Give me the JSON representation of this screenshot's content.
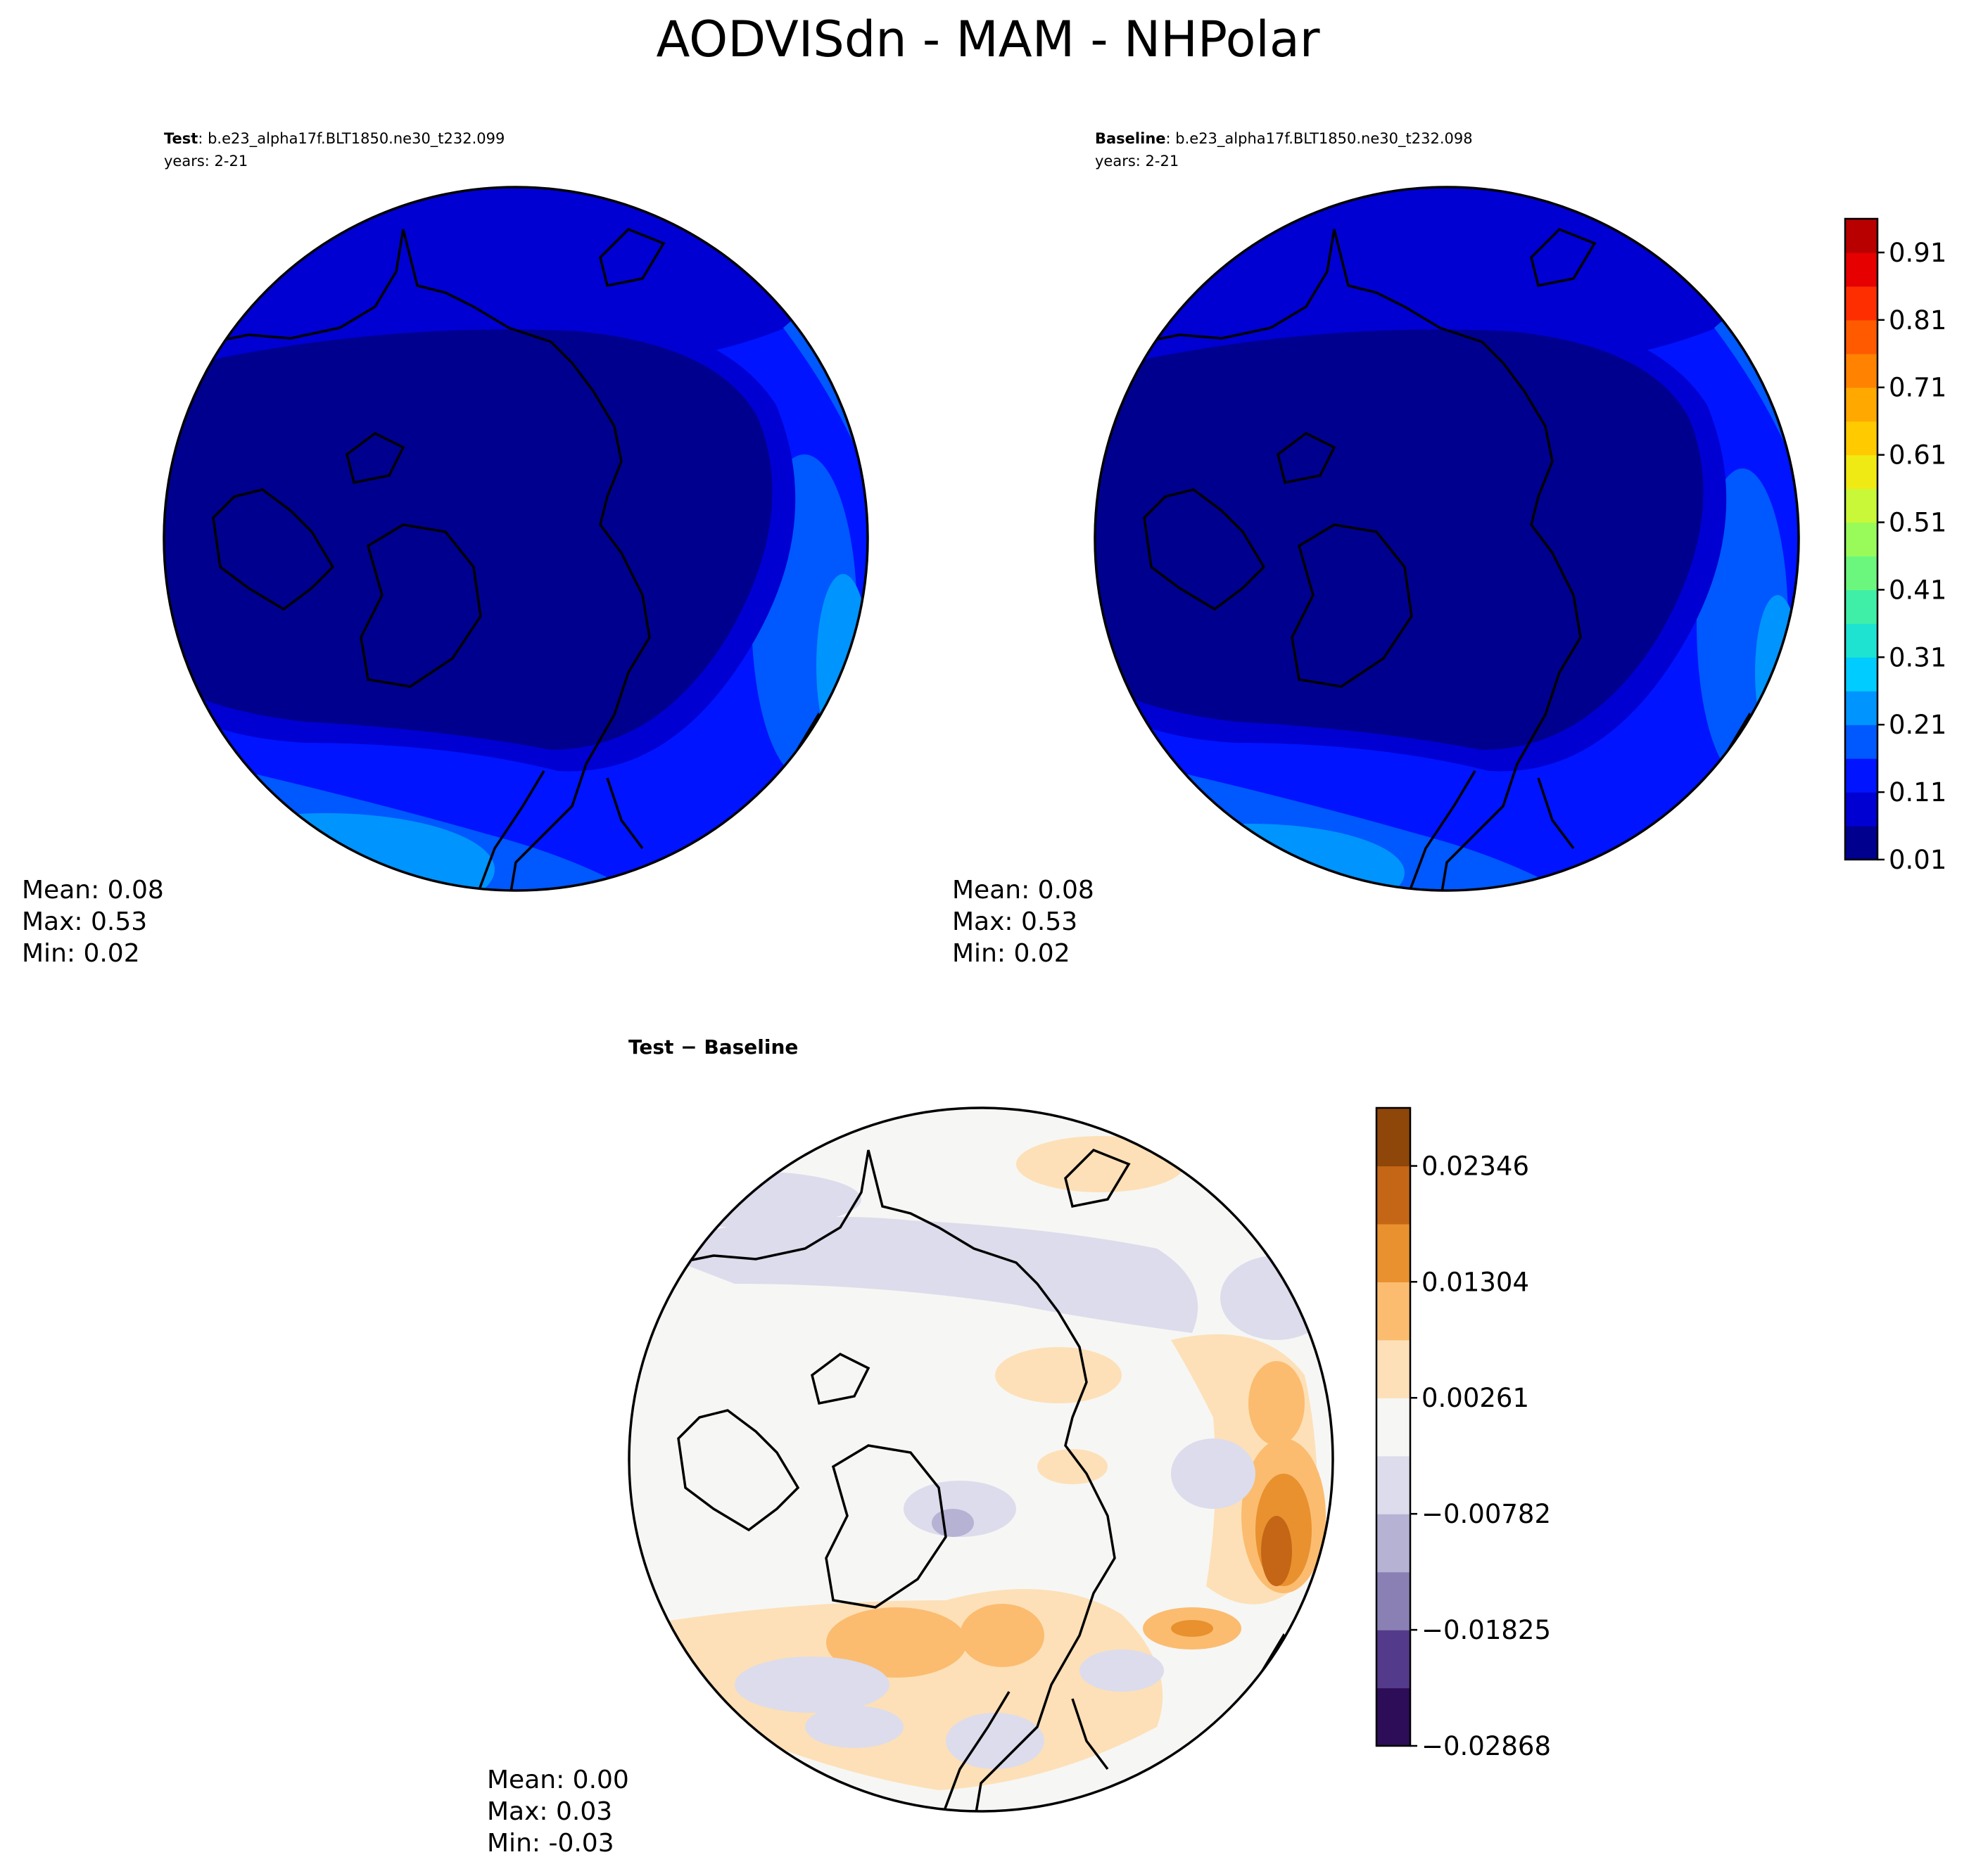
{
  "figure": {
    "title": "AODVISdn - MAM - NHPolar"
  },
  "colors": {
    "land_line": "#000000",
    "map_border": "#000000",
    "diff_neutral": "#f6f6f4"
  },
  "chart_data": [
    {
      "type": "heatmap",
      "projection": "north-polar-stereographic",
      "label_bold": "Test",
      "label_case": ": b.e23_alpha17f.BLT1850.ne30_t232.099",
      "years": "years: 2-21",
      "stats": {
        "mean": "Mean:  0.08",
        "max": "Max:  0.53",
        "min": "Min:  0.02"
      },
      "values": {
        "mean": 0.08,
        "max": 0.53,
        "min": 0.02
      }
    },
    {
      "type": "heatmap",
      "projection": "north-polar-stereographic",
      "label_bold": "Baseline",
      "label_case": ": b.e23_alpha17f.BLT1850.ne30_t232.098",
      "years": "years: 2-21",
      "stats": {
        "mean": "Mean:  0.08",
        "max": "Max:  0.53",
        "min": "Min:  0.02"
      },
      "values": {
        "mean": 0.08,
        "max": 0.53,
        "min": 0.02
      }
    },
    {
      "type": "heatmap",
      "projection": "north-polar-stereographic",
      "label_bold": "Test − Baseline",
      "stats": {
        "mean": "Mean:  0.00",
        "max": "Max:  0.03",
        "min": "Min: -0.03"
      },
      "values": {
        "mean": 0.0,
        "max": 0.03,
        "min": -0.03
      }
    }
  ],
  "colorbars": {
    "main": {
      "ticks": [
        "0.01",
        "0.11",
        "0.21",
        "0.31",
        "0.41",
        "0.51",
        "0.61",
        "0.71",
        "0.81",
        "0.91"
      ],
      "tick_values": [
        0.01,
        0.11,
        0.21,
        0.31,
        0.41,
        0.51,
        0.61,
        0.71,
        0.81,
        0.91
      ],
      "range": [
        0.01,
        0.96
      ],
      "colors": [
        "#00008f",
        "#0000d2",
        "#0014ff",
        "#0058ff",
        "#0094ff",
        "#00ccff",
        "#1ee3d1",
        "#3fefa8",
        "#6bf77e",
        "#99fb5a",
        "#c8f838",
        "#f0ea14",
        "#ffca00",
        "#ffa800",
        "#ff8200",
        "#ff5a00",
        "#ff2e00",
        "#e60000",
        "#b80000"
      ]
    },
    "diff": {
      "ticks": [
        "−0.02868",
        "−0.01825",
        "−0.00782",
        "0.00261",
        "0.01304",
        "0.02346"
      ],
      "tick_values": [
        -0.02868,
        -0.01825,
        -0.00782,
        0.00261,
        0.01304,
        0.02346
      ],
      "range": [
        -0.02868,
        0.02868
      ],
      "colors": [
        "#2d0c58",
        "#543a8a",
        "#8a80b4",
        "#b5b2d4",
        "#dcdcec",
        "#f6f6f4",
        "#fde0b7",
        "#fbbc70",
        "#e8912e",
        "#c46616",
        "#8e4609"
      ]
    }
  }
}
